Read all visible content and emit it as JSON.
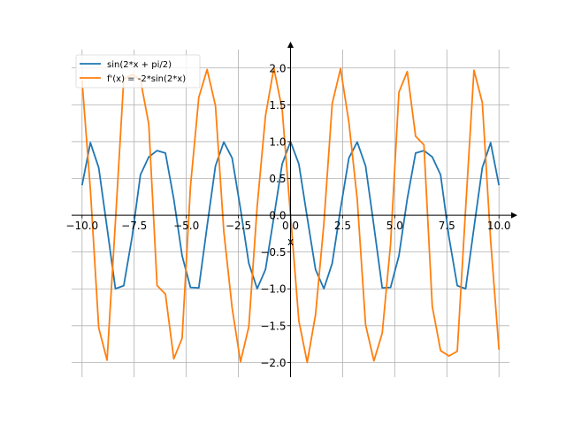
{
  "chart_data": {
    "type": "line",
    "title": "",
    "xlabel": "x",
    "ylabel": "",
    "xlim": [
      -10.5,
      10.5
    ],
    "ylim": [
      -2.2,
      2.25
    ],
    "grid": true,
    "legend": "top-left",
    "x_ticks": [
      -10.0,
      -7.5,
      -5.0,
      -2.5,
      0.0,
      2.5,
      5.0,
      7.5,
      10.0
    ],
    "x_tick_labels": [
      "−10.0",
      "−7.5",
      "−5.0",
      "−2.5",
      "0.0",
      "2.5",
      "5.0",
      "7.5",
      "10.0"
    ],
    "y_ticks": [
      -2.0,
      -1.5,
      -1.0,
      -0.5,
      0.0,
      0.5,
      1.0,
      1.5,
      2.0
    ],
    "y_tick_labels": [
      "−2.0",
      "−1.5",
      "−1.0",
      "−0.5",
      "0.0",
      "0.5",
      "1.0",
      "1.5",
      "2.0"
    ],
    "x": [
      -10.0,
      -9.6,
      -9.2,
      -8.8,
      -8.4,
      -8.0,
      -7.6,
      -7.2,
      -6.8,
      -6.4,
      -6.0,
      -5.6,
      -5.2,
      -4.8,
      -4.4,
      -4.0,
      -3.6,
      -3.2,
      -2.8,
      -2.4,
      -2.0,
      -1.6,
      -1.2,
      -0.8,
      -0.4,
      0.0,
      0.4,
      0.8,
      1.2,
      1.6,
      2.0,
      2.4,
      2.8,
      3.2,
      3.6,
      4.0,
      4.4,
      4.8,
      5.2,
      5.6,
      6.0,
      6.4,
      6.8,
      7.2,
      7.6,
      8.0,
      8.4,
      8.8,
      9.2,
      9.6,
      10.0
    ],
    "series": [
      {
        "name": "sin(2*x + pi/2)",
        "color": "#1f77b4",
        "values": [
          0.408,
          0.985,
          0.645,
          -0.172,
          -0.999,
          -0.957,
          -0.295,
          0.548,
          0.792,
          0.878,
          0.844,
          0.22,
          -0.551,
          -0.981,
          -0.987,
          -0.146,
          0.67,
          0.994,
          0.776,
          0.087,
          -0.654,
          -0.998,
          -0.737,
          -0.029,
          0.697,
          1.0,
          0.697,
          -0.029,
          -0.737,
          -0.998,
          -0.654,
          0.087,
          0.776,
          0.994,
          0.67,
          -0.146,
          -0.987,
          -0.981,
          -0.551,
          0.22,
          0.844,
          0.878,
          0.792,
          0.548,
          -0.295,
          -0.957,
          -0.999,
          -0.172,
          0.645,
          0.985,
          0.408
        ]
      },
      {
        "name": "f'(x) = -2*sin(2*x)",
        "color": "#ff7f0e",
        "values": [
          1.826,
          0.346,
          -1.53,
          -1.97,
          -0.089,
          1.848,
          1.912,
          1.84,
          1.238,
          -0.955,
          -1.073,
          -1.951,
          -1.67,
          0.39,
          1.601,
          1.979,
          1.487,
          -0.219,
          -1.262,
          -1.992,
          -1.514,
          0.117,
          1.351,
          1.999,
          1.435,
          0.0,
          -1.435,
          -1.999,
          -1.351,
          -0.117,
          1.514,
          1.992,
          1.262,
          0.219,
          -1.487,
          -1.979,
          -1.601,
          -0.39,
          1.67,
          1.951,
          1.073,
          0.955,
          -1.238,
          -1.84,
          -1.912,
          -1.848,
          0.089,
          1.97,
          1.53,
          -0.346,
          -1.826
        ]
      }
    ]
  }
}
